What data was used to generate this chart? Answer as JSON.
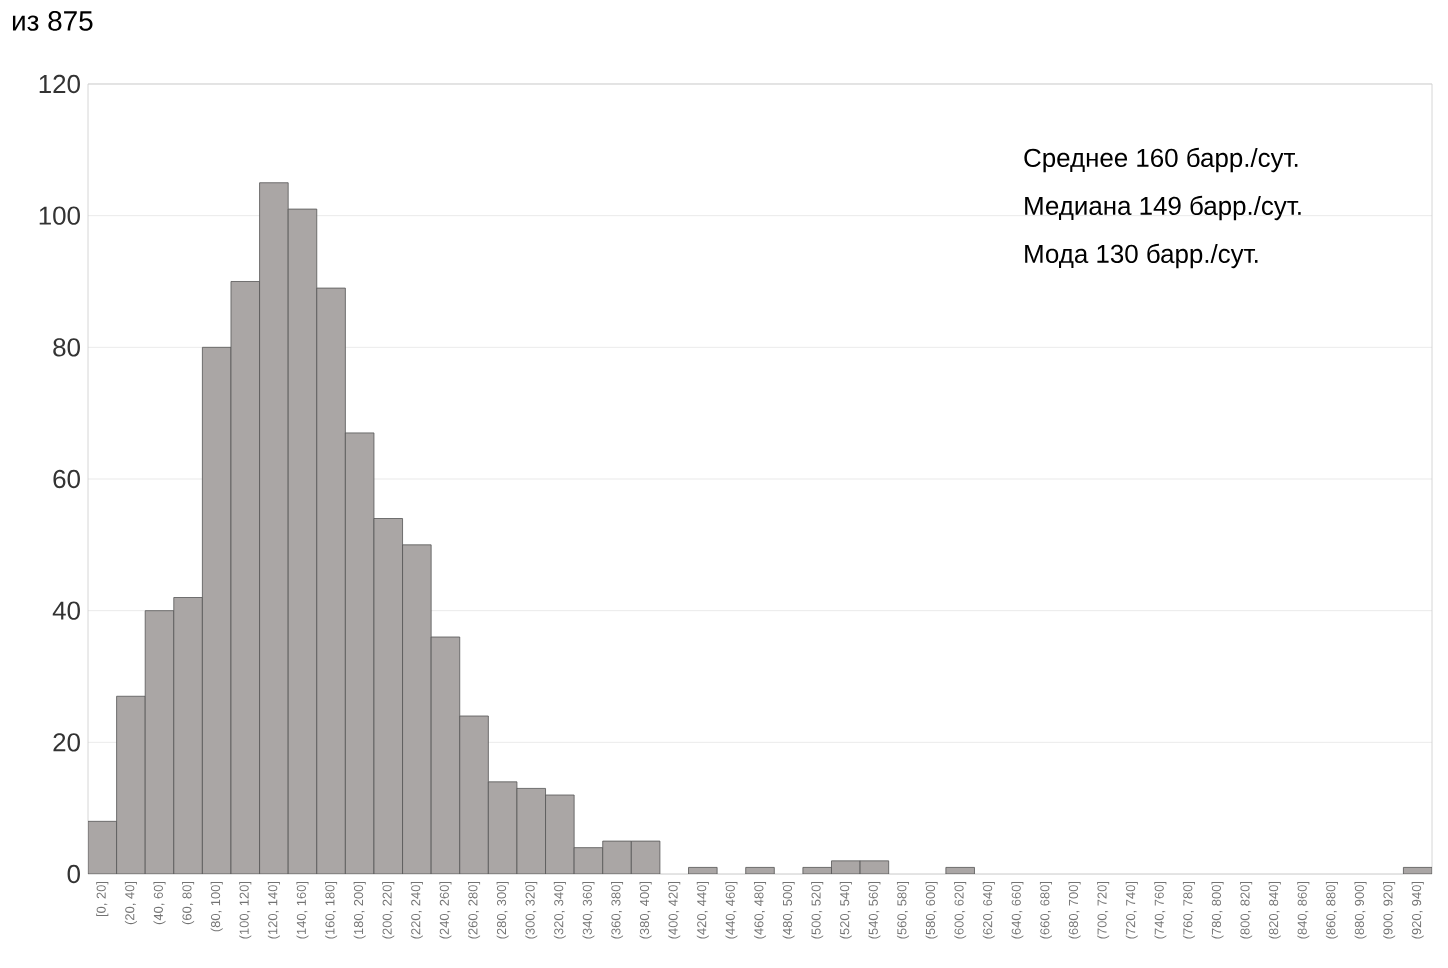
{
  "chart_data": {
    "type": "bar",
    "title": "из 875",
    "categories": [
      "[0, 20]",
      "(20, 40]",
      "(40, 60]",
      "(60, 80]",
      "(80, 100]",
      "(100, 120]",
      "(120, 140]",
      "(140, 160]",
      "(160, 180]",
      "(180, 200]",
      "(200, 220]",
      "(220, 240]",
      "(240, 260]",
      "(260, 280]",
      "(280, 300]",
      "(300, 320]",
      "(320, 340]",
      "(340, 360]",
      "(360, 380]",
      "(380, 400]",
      "(400, 420]",
      "(420, 440]",
      "(440, 460]",
      "(460, 480]",
      "(480, 500]",
      "(500, 520]",
      "(520, 540]",
      "(540, 560]",
      "(560, 580]",
      "(580, 600]",
      "(600, 620]",
      "(620, 640]",
      "(640, 660]",
      "(660, 680]",
      "(680, 700]",
      "(700, 720]",
      "(720, 740]",
      "(740, 760]",
      "(760, 780]",
      "(780, 800]",
      "(800, 820]",
      "(820, 840]",
      "(840, 860]",
      "(860, 880]",
      "(880, 900]",
      "(900, 920]",
      "(920, 940]"
    ],
    "values": [
      8,
      27,
      40,
      42,
      80,
      90,
      105,
      101,
      89,
      67,
      54,
      50,
      36,
      24,
      14,
      13,
      12,
      4,
      5,
      5,
      0,
      1,
      0,
      1,
      0,
      1,
      2,
      2,
      0,
      0,
      1,
      0,
      0,
      0,
      0,
      0,
      0,
      0,
      0,
      0,
      0,
      0,
      0,
      0,
      0,
      0,
      1
    ],
    "color": "#aaa6a5",
    "ylim": [
      0,
      120
    ],
    "yticks": [
      0,
      20,
      40,
      60,
      80,
      100,
      120
    ],
    "grid": "y",
    "annotations": [
      "Среднее 160 барр./сут.",
      "Медиана 149 барр./сут.",
      "Мода 130 барр./сут."
    ]
  }
}
